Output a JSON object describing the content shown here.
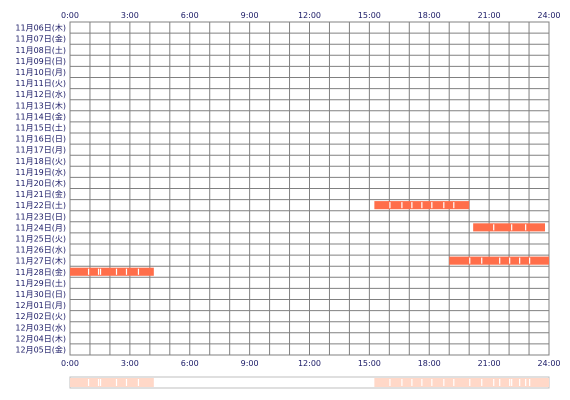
{
  "chart_data": {
    "type": "timeline",
    "title": "",
    "x": {
      "unit": "hour",
      "range": [
        0,
        24
      ],
      "tick_labels": [
        "0:00",
        "3:00",
        "6:00",
        "9:00",
        "12:00",
        "15:00",
        "18:00",
        "21:00",
        "24:00"
      ]
    },
    "rows": [
      "11月06日(木)",
      "11月07日(金)",
      "11月08日(土)",
      "11月09日(日)",
      "11月10日(月)",
      "11月11日(火)",
      "11月12日(水)",
      "11月13日(木)",
      "11月14日(金)",
      "11月15日(土)",
      "11月16日(日)",
      "11月17日(月)",
      "11月18日(火)",
      "11月19日(水)",
      "11月20日(木)",
      "11月21日(金)",
      "11月22日(土)",
      "11月23日(日)",
      "11月24日(月)",
      "11月25日(火)",
      "11月26日(水)",
      "11月27日(木)",
      "11月28日(金)",
      "11月29日(土)",
      "11月30日(日)",
      "12月01日(月)",
      "12月02日(火)",
      "12月03日(水)",
      "12月04日(木)",
      "12月05日(金)"
    ],
    "bars": [
      {
        "row": "11月22日(土)",
        "start": 15.25,
        "end": 20.0
      },
      {
        "row": "11月24日(月)",
        "start": 20.2,
        "end": 23.8
      },
      {
        "row": "11月27日(木)",
        "start": 19.0,
        "end": 24.0
      },
      {
        "row": "11月28日(金)",
        "start": 0.0,
        "end": 4.2
      }
    ],
    "gaps": [
      {
        "row": "11月22日(土)",
        "at": [
          16.0,
          16.6,
          17.1,
          17.6,
          18.1,
          18.7,
          19.2
        ]
      },
      {
        "row": "11月24日(月)",
        "at": [
          21.2,
          22.1,
          22.8
        ]
      },
      {
        "row": "11月27日(木)",
        "at": [
          20.0,
          20.6,
          21.5,
          22.0,
          22.5,
          23.0
        ]
      },
      {
        "row": "11月28日(金)",
        "at": [
          0.9,
          1.4,
          1.5,
          2.3,
          2.8,
          3.4
        ]
      }
    ],
    "bar_color": "#ff6e4a",
    "summary_color": "#ffd8c8",
    "grid": true,
    "grid_color": "#808080"
  }
}
